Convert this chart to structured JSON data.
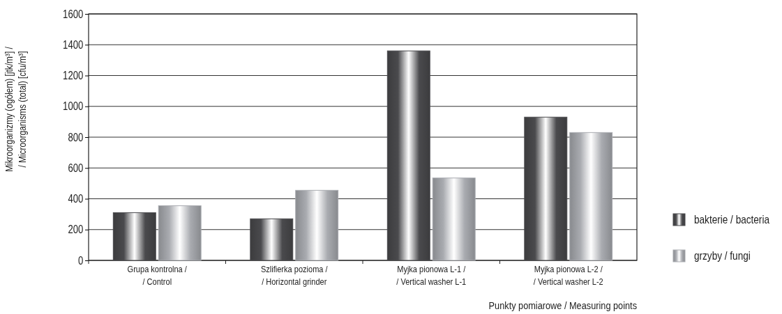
{
  "chart_data": {
    "type": "bar",
    "xlabel": "Punkty pomiarowe / Measuring points",
    "ylabel": "Mikroorganizmy (ogółem) [jtk/m³] /\n/ Microorganisms (total) [cfu/m³]",
    "categories": [
      "Grupa kontrolna /\n/ Control",
      "Szlifierka pozioma /\n/ Horizontal grinder",
      "Myjka pionowa L-1 /\n/ Vertical washer L-1",
      "Myjka pionowa L-2 /\n/ Vertical washer L-2"
    ],
    "series": [
      {
        "name": "bakterie / bacteria",
        "color": "#4a4a4d",
        "values": [
          310,
          270,
          1360,
          930
        ]
      },
      {
        "name": "grzyby / fungi",
        "color": "#a9abb0",
        "values": [
          355,
          455,
          535,
          830
        ]
      }
    ],
    "ylim": [
      0,
      1600
    ],
    "yticks": [
      0,
      200,
      400,
      600,
      800,
      1000,
      1200,
      1400,
      1600
    ],
    "grid": "y",
    "legend": "right"
  }
}
